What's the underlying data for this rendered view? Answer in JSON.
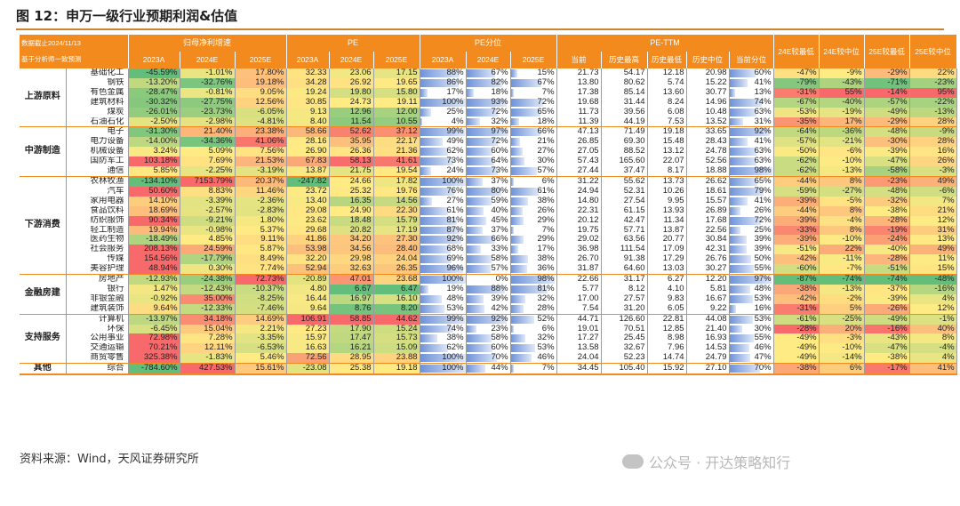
{
  "title": "图 12：申万一级行业预期利润&估值",
  "source": "资料来源：Wind，天风证券研究所",
  "watermark": "公众号 · 开达策略知行",
  "header": {
    "date_note": "数据截止2024/11/13",
    "consensus_note": "基于分析师一致预测",
    "groups": [
      "归母净利增速",
      "PE",
      "PE分位",
      "PE-TTM"
    ],
    "years": [
      "2023A",
      "2024E",
      "2025E"
    ],
    "pettm_cols": [
      "当前",
      "历史最高",
      "历史最低",
      "历史中位",
      "当前分位"
    ],
    "extra_cols": [
      "24E较最低",
      "24E较中位",
      "25E较最低",
      "25E较中位"
    ]
  },
  "groups": [
    {
      "name": "上游原料",
      "rows": [
        [
          "基础化工",
          "-45.59%",
          "-1.01%",
          "17.80%",
          "32.33",
          "23.06",
          "17.15",
          "88%",
          "67%",
          "15%",
          "21.73",
          "54.17",
          "12.18",
          "20.98",
          "60%",
          "-47%",
          "-9%",
          "-29%",
          "22%"
        ],
        [
          "钢铁",
          "-13.20%",
          "-32.76%",
          "19.18%",
          "34.28",
          "26.92",
          "19.65",
          "86%",
          "82%",
          "67%",
          "13.80",
          "80.62",
          "5.74",
          "15.22",
          "41%",
          "-79%",
          "-43%",
          "-71%",
          "-23%"
        ],
        [
          "有色金属",
          "-28.47%",
          "-0.81%",
          "9.05%",
          "19.24",
          "19.80",
          "15.80",
          "17%",
          "18%",
          "7%",
          "17.38",
          "85.14",
          "13.60",
          "30.77",
          "13%",
          "-31%",
          "55%",
          "-14%",
          "95%"
        ],
        [
          "建筑材料",
          "-30.32%",
          "-27.75%",
          "12.56%",
          "30.85",
          "24.73",
          "19.11",
          "100%",
          "93%",
          "72%",
          "19.68",
          "31.44",
          "8.24",
          "14.96",
          "74%",
          "-67%",
          "-40%",
          "-57%",
          "-22%"
        ],
        [
          "煤炭",
          "-26.01%",
          "-23.73%",
          "-6.05%",
          "9.13",
          "12.96",
          "12.00",
          "25%",
          "72%",
          "65%",
          "11.73",
          "39.56",
          "6.08",
          "10.48",
          "63%",
          "-53%",
          "-19%",
          "-49%",
          "-13%"
        ],
        [
          "石油石化",
          "-2.50%",
          "-2.98%",
          "-4.81%",
          "8.40",
          "11.54",
          "10.55",
          "4%",
          "32%",
          "18%",
          "11.39",
          "44.19",
          "7.53",
          "13.52",
          "31%",
          "-35%",
          "17%",
          "-29%",
          "28%"
        ]
      ]
    },
    {
      "name": "中游制造",
      "rows": [
        [
          "电子",
          "-31.30%",
          "21.40%",
          "23.38%",
          "58.66",
          "52.62",
          "37.12",
          "99%",
          "97%",
          "66%",
          "47.13",
          "71.49",
          "19.18",
          "33.65",
          "92%",
          "-64%",
          "-36%",
          "-48%",
          "-9%"
        ],
        [
          "电力设备",
          "-14.00%",
          "-34.36%",
          "41.06%",
          "28.16",
          "35.95",
          "22.17",
          "49%",
          "72%",
          "21%",
          "26.85",
          "69.30",
          "15.48",
          "28.43",
          "41%",
          "-57%",
          "-21%",
          "-30%",
          "28%"
        ],
        [
          "机械设备",
          "3.24%",
          "5.09%",
          "7.56%",
          "26.90",
          "26.36",
          "21.36",
          "62%",
          "60%",
          "27%",
          "27.05",
          "88.52",
          "13.12",
          "24.78",
          "63%",
          "-50%",
          "-6%",
          "-39%",
          "16%"
        ],
        [
          "国防军工",
          "103.18%",
          "7.69%",
          "21.53%",
          "67.83",
          "58.13",
          "41.61",
          "73%",
          "64%",
          "30%",
          "57.43",
          "165.60",
          "22.07",
          "52.56",
          "63%",
          "-62%",
          "-10%",
          "-47%",
          "26%"
        ],
        [
          "通信",
          "5.85%",
          "-2.25%",
          "-3.19%",
          "13.87",
          "21.75",
          "19.54",
          "24%",
          "73%",
          "57%",
          "27.44",
          "37.47",
          "8.17",
          "18.88",
          "98%",
          "-62%",
          "-13%",
          "-58%",
          "-3%"
        ]
      ]
    },
    {
      "name": "下游消费",
      "rows": [
        [
          "农林牧渔",
          "-134.10%",
          "7153.79%",
          "20.37%",
          "-247.82",
          "24.66",
          "17.82",
          "100%",
          "37%",
          "6%",
          "31.22",
          "55.62",
          "13.73",
          "26.62",
          "65%",
          "-44%",
          "8%",
          "-23%",
          "49%"
        ],
        [
          "汽车",
          "50.60%",
          "8.83%",
          "11.46%",
          "23.72",
          "25.32",
          "19.76",
          "76%",
          "80%",
          "61%",
          "24.94",
          "52.31",
          "10.26",
          "18.61",
          "79%",
          "-59%",
          "-27%",
          "-48%",
          "-6%"
        ],
        [
          "家用电器",
          "14.10%",
          "-3.39%",
          "-2.36%",
          "13.40",
          "16.35",
          "14.56",
          "27%",
          "59%",
          "38%",
          "14.80",
          "27.54",
          "9.95",
          "15.57",
          "41%",
          "-39%",
          "-5%",
          "-32%",
          "7%"
        ],
        [
          "食品饮料",
          "18.69%",
          "-2.57%",
          "-2.83%",
          "29.08",
          "24.90",
          "22.30",
          "61%",
          "40%",
          "26%",
          "22.31",
          "61.15",
          "13.93",
          "26.89",
          "26%",
          "-44%",
          "8%",
          "-38%",
          "21%"
        ],
        [
          "纺织服饰",
          "90.34%",
          "-9.21%",
          "1.80%",
          "23.62",
          "18.48",
          "15.79",
          "81%",
          "45%",
          "29%",
          "20.12",
          "42.47",
          "11.34",
          "17.68",
          "72%",
          "-39%",
          "-4%",
          "-28%",
          "12%"
        ],
        [
          "轻工制造",
          "19.94%",
          "-0.98%",
          "5.37%",
          "29.68",
          "20.82",
          "17.19",
          "87%",
          "37%",
          "7%",
          "19.75",
          "57.71",
          "13.87",
          "22.56",
          "25%",
          "-33%",
          "8%",
          "-19%",
          "31%"
        ],
        [
          "医药生物",
          "-18.49%",
          "4.85%",
          "9.11%",
          "41.86",
          "34.20",
          "27.30",
          "92%",
          "66%",
          "29%",
          "29.02",
          "63.56",
          "20.77",
          "30.84",
          "39%",
          "-39%",
          "-10%",
          "-24%",
          "13%"
        ],
        [
          "社会服务",
          "208.13%",
          "24.59%",
          "5.87%",
          "53.98",
          "34.56",
          "28.40",
          "68%",
          "33%",
          "17%",
          "36.98",
          "111.54",
          "17.09",
          "42.31",
          "39%",
          "-51%",
          "22%",
          "-40%",
          "49%"
        ],
        [
          "传媒",
          "154.56%",
          "-17.79%",
          "8.49%",
          "32.20",
          "29.98",
          "24.04",
          "69%",
          "58%",
          "38%",
          "26.70",
          "91.38",
          "17.29",
          "26.76",
          "50%",
          "-42%",
          "-11%",
          "-28%",
          "11%"
        ],
        [
          "美容护理",
          "48.94%",
          "0.30%",
          "7.74%",
          "52.94",
          "32.63",
          "26.35",
          "96%",
          "57%",
          "36%",
          "31.87",
          "64.60",
          "13.03",
          "30.27",
          "55%",
          "-60%",
          "-7%",
          "-51%",
          "15%"
        ]
      ]
    },
    {
      "name": "金融房建",
      "rows": [
        [
          "房地产",
          "-12.93%",
          "-24.38%",
          "72.73%",
          "-20.89",
          "47.01",
          "23.68",
          "100%",
          "0%",
          "98%",
          "22.66",
          "31.17",
          "6.27",
          "12.20",
          "97%",
          "-87%",
          "-74%",
          "-74%",
          "-48%"
        ],
        [
          "银行",
          "1.47%",
          "-12.43%",
          "-10.37%",
          "4.80",
          "6.67",
          "6.47",
          "19%",
          "88%",
          "81%",
          "5.77",
          "8.12",
          "4.10",
          "5.81",
          "48%",
          "-38%",
          "-13%",
          "-37%",
          "-16%"
        ],
        [
          "非银金融",
          "-0.92%",
          "35.00%",
          "-8.25%",
          "16.44",
          "16.97",
          "16.10",
          "48%",
          "39%",
          "32%",
          "17.00",
          "27.57",
          "9.83",
          "16.67",
          "53%",
          "-42%",
          "-2%",
          "-39%",
          "4%"
        ],
        [
          "建筑装饰",
          "9.64%",
          "-12.33%",
          "-7.46%",
          "9.64",
          "8.76",
          "8.20",
          "53%",
          "42%",
          "28%",
          "7.54",
          "31.20",
          "6.05",
          "9.22",
          "16%",
          "-31%",
          "5%",
          "-26%",
          "12%"
        ]
      ]
    },
    {
      "name": "支持服务",
      "rows": [
        [
          "计算机",
          "-13.97%",
          "34.18%",
          "14.69%",
          "106.91",
          "58.85",
          "44.62",
          "99%",
          "92%",
          "52%",
          "44.71",
          "126.60",
          "22.81",
          "44.08",
          "53%",
          "-61%",
          "-25%",
          "-49%",
          "-1%"
        ],
        [
          "环保",
          "-6.45%",
          "15.04%",
          "2.21%",
          "27.23",
          "17.90",
          "15.24",
          "74%",
          "23%",
          "6%",
          "19.01",
          "70.51",
          "12.85",
          "21.40",
          "30%",
          "-28%",
          "20%",
          "-16%",
          "40%"
        ],
        [
          "公用事业",
          "72.98%",
          "7.28%",
          "-3.35%",
          "15.97",
          "17.47",
          "15.73",
          "38%",
          "58%",
          "32%",
          "17.27",
          "25.45",
          "8.98",
          "16.93",
          "55%",
          "-49%",
          "-3%",
          "-43%",
          "8%"
        ],
        [
          "交通运输",
          "70.21%",
          "12.11%",
          "-6.53%",
          "16.63",
          "16.21",
          "15.09",
          "62%",
          "60%",
          "53%",
          "13.58",
          "32.67",
          "7.96",
          "14.53",
          "46%",
          "-49%",
          "-10%",
          "-47%",
          "-4%"
        ],
        [
          "商贸零售",
          "325.38%",
          "-1.83%",
          "5.46%",
          "72.56",
          "28.95",
          "23.88",
          "100%",
          "70%",
          "46%",
          "24.04",
          "52.23",
          "14.74",
          "24.79",
          "47%",
          "-49%",
          "-14%",
          "-38%",
          "4%"
        ]
      ]
    },
    {
      "name": "其他",
      "rows": [
        [
          "综合",
          "-784.60%",
          "427.53%",
          "15.61%",
          "-23.08",
          "25.38",
          "19.18",
          "100%",
          "44%",
          "7%",
          "34.45",
          "105.40",
          "15.92",
          "27.10",
          "70%",
          "-38%",
          "6%",
          "-17%",
          "41%"
        ]
      ]
    }
  ],
  "colors": {
    "orange": "#f28a1d",
    "green": "#63be7b",
    "yellow": "#ffeb84",
    "red": "#f8696b",
    "bar": "#6f93d9"
  }
}
